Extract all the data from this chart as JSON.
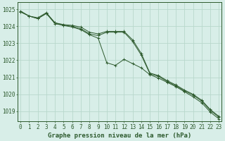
{
  "title": "Graphe pression niveau de la mer (hPa)",
  "bg_color": "#d8eee8",
  "grid_color": "#b8d8cc",
  "line_color": "#2d5a2d",
  "hours": [
    0,
    1,
    2,
    3,
    4,
    5,
    6,
    7,
    8,
    9,
    10,
    11,
    12,
    13,
    14,
    15,
    16,
    17,
    18,
    19,
    20,
    21,
    22,
    23
  ],
  "line1": [
    1024.85,
    1024.6,
    1024.45,
    1024.75,
    1024.2,
    1024.05,
    1024.0,
    1023.85,
    1023.55,
    1023.45,
    1023.65,
    1023.65,
    1023.65,
    1023.1,
    1022.3,
    1021.2,
    1021.05,
    1020.75,
    1020.5,
    1020.2,
    1019.95,
    1019.6,
    1019.05,
    1018.65
  ],
  "line2": [
    1024.9,
    1024.6,
    1024.45,
    1024.75,
    1024.15,
    1024.05,
    1023.95,
    1023.8,
    1023.5,
    1023.3,
    1021.85,
    1021.7,
    1022.05,
    1021.8,
    1021.55,
    1021.15,
    1020.95,
    1020.7,
    1020.45,
    1020.15,
    1019.85,
    1019.5,
    1018.95,
    1018.55
  ],
  "line3": [
    1024.85,
    1024.6,
    1024.5,
    1024.8,
    1024.2,
    1024.1,
    1024.05,
    1023.95,
    1023.65,
    1023.55,
    1023.7,
    1023.7,
    1023.7,
    1023.2,
    1022.4,
    1021.25,
    1021.1,
    1020.8,
    1020.55,
    1020.25,
    1020.0,
    1019.65,
    1019.1,
    1018.7
  ],
  "ylim_min": 1018.4,
  "ylim_max": 1025.4,
  "yticks": [
    1019,
    1020,
    1021,
    1022,
    1023,
    1024,
    1025
  ],
  "tick_fontsize": 5.5,
  "title_fontsize": 6.5
}
